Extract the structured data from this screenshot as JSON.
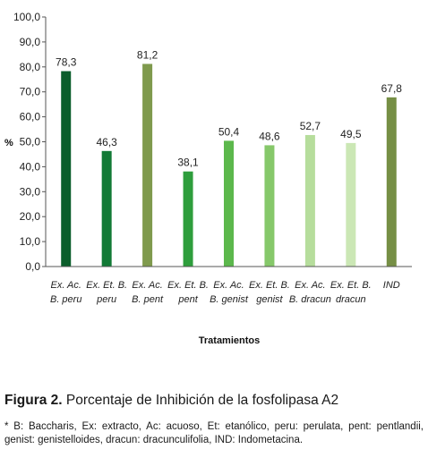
{
  "chart_data": {
    "type": "bar",
    "categories": [
      [
        "Ex. Ac.",
        "B. peru"
      ],
      [
        "Ex. Et. B.",
        "peru"
      ],
      [
        "Ex. Ac.",
        "B. pent"
      ],
      [
        "Ex. Et. B.",
        "pent"
      ],
      [
        "Ex. Ac.",
        "B. genist"
      ],
      [
        "Ex. Et. B.",
        "genist"
      ],
      [
        "Ex. Ac.",
        "B. dracun"
      ],
      [
        "Ex. Et. B.",
        "dracun"
      ],
      [
        "IND",
        ""
      ]
    ],
    "values": [
      78.3,
      46.3,
      81.2,
      38.1,
      50.4,
      48.6,
      52.7,
      49.5,
      67.8
    ],
    "value_labels": [
      "78,3",
      "46,3",
      "81,2",
      "38,1",
      "50,4",
      "48,6",
      "52,7",
      "49,5",
      "67,8"
    ],
    "colors": [
      "#0b5e2b",
      "#127a36",
      "#7f9a4d",
      "#2e9e3c",
      "#5cb84c",
      "#86c86a",
      "#b6dd9c",
      "#cbe7b5",
      "#768f45"
    ],
    "ylim": [
      0,
      100
    ],
    "yticks": [
      "0,0",
      "10,0",
      "20,0",
      "30,0",
      "40,0",
      "50,0",
      "60,0",
      "70,0",
      "80,0",
      "90,0",
      "100,0"
    ],
    "ylabel": "%",
    "xlabel": "Tratamientos",
    "grid": false
  },
  "caption": {
    "figure_label": "Figura 2.",
    "figure_title": "Porcentaje de Inhibición de la fosfolipasa A2",
    "note": "* B: Baccharis, Ex: extracto, Ac: acuoso, Et: etanólico, peru: perulata, pent: pentlandii, genist: genistelloides, dracun: dracunculifolia, IND: Indometacina."
  }
}
